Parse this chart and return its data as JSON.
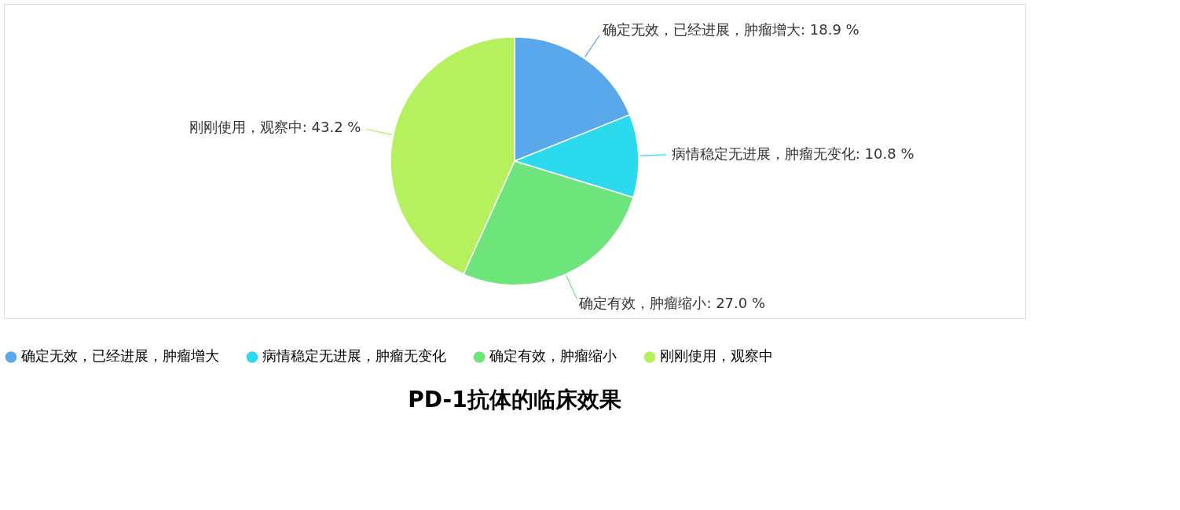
{
  "chart_data": {
    "type": "pie",
    "title": "PD-1抗体的临床效果",
    "categories": [
      "确定无效，已经进展，肿瘤增大",
      "病情稳定无进展，肿瘤无变化",
      "确定有效，肿瘤缩小",
      "刚刚使用，观察中"
    ],
    "values": [
      18.9,
      10.8,
      27.0,
      43.2
    ],
    "colors": [
      "#5aa8ec",
      "#2cdaee",
      "#6ee57a",
      "#b5f05e"
    ],
    "value_labels": [
      "确定无效，已经进展，肿瘤增大: 18.9 %",
      "病情稳定无进展，肿瘤无变化: 10.8 %",
      "确定有效，肿瘤缩小: 27.0 %",
      "刚刚使用，观察中: 43.2 %"
    ],
    "legend": "bottom"
  }
}
